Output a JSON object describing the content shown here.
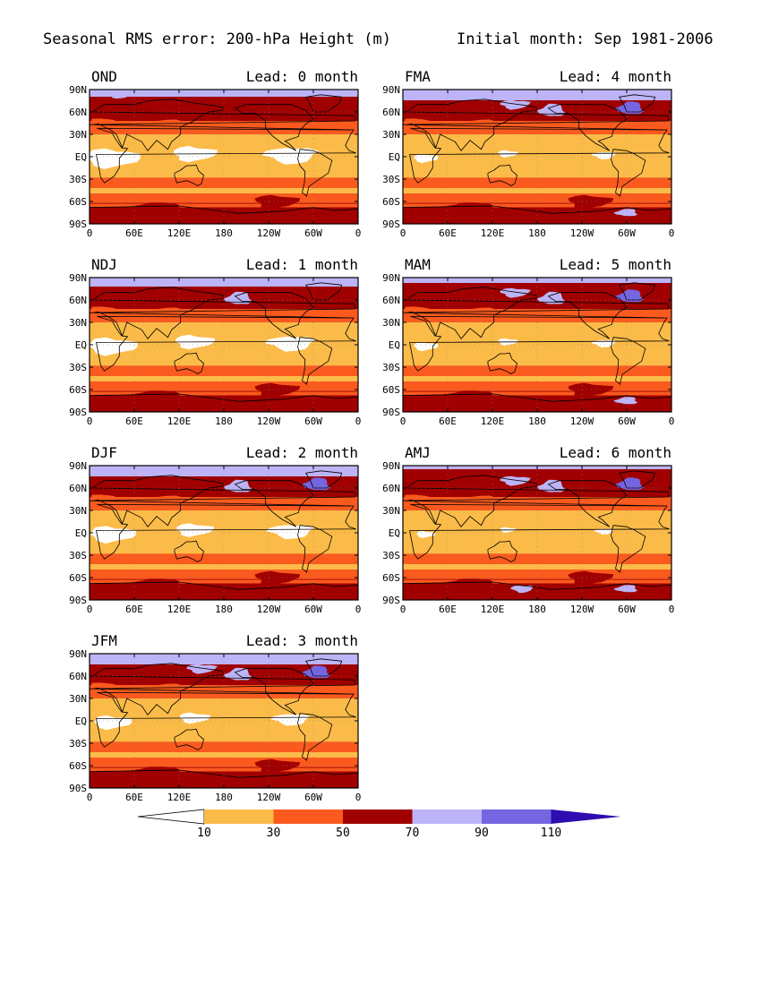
{
  "title": {
    "left": "Seasonal RMS error: 200-hPa Height (m)",
    "right": "Initial month: Sep 1981-2006"
  },
  "axes": {
    "lat_labels": [
      "90N",
      "60N",
      "30N",
      "EQ",
      "30S",
      "60S",
      "90S"
    ],
    "lon_labels": [
      "0",
      "60E",
      "120E",
      "180",
      "120W",
      "60W",
      "0"
    ]
  },
  "panels": [
    {
      "season": "OND",
      "lead": "Lead: 0 month",
      "lead_months": 0
    },
    {
      "season": "NDJ",
      "lead": "Lead: 1 month",
      "lead_months": 1
    },
    {
      "season": "DJF",
      "lead": "Lead: 2 month",
      "lead_months": 2
    },
    {
      "season": "JFM",
      "lead": "Lead: 3 month",
      "lead_months": 3
    },
    {
      "season": "FMA",
      "lead": "Lead: 4 month",
      "lead_months": 4
    },
    {
      "season": "MAM",
      "lead": "Lead: 5 month",
      "lead_months": 5
    },
    {
      "season": "AMJ",
      "lead": "Lead: 6 month",
      "lead_months": 6
    }
  ],
  "colorbar": {
    "tick_labels": [
      "10",
      "30",
      "50",
      "70",
      "90",
      "110"
    ],
    "colors": [
      "#ffffff",
      "#fbbb48",
      "#fa5a1e",
      "#a00000",
      "#bdb4f7",
      "#7465e0",
      "#2e0cb0"
    ]
  }
}
